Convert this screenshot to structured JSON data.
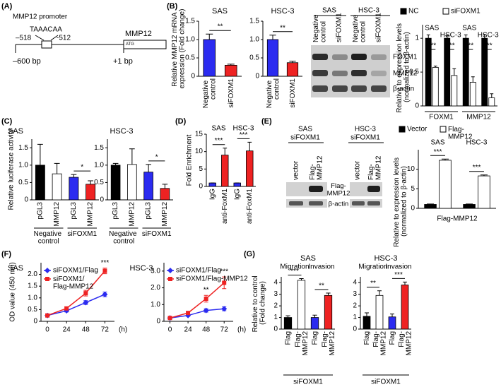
{
  "panel_labels": [
    "(A)",
    "(B)",
    "(C)",
    "(D)",
    "(E)",
    "(F)",
    "(G)"
  ],
  "promoter": {
    "title": "MMP12 promoter",
    "motif": "TAAACAA",
    "left_pos": "–518",
    "right_pos": "-512",
    "gene": "MMP12",
    "start_codon": "ATG",
    "start": "–600 bp",
    "tss": "+1 bp"
  },
  "blot_b": {
    "groups": [
      "SAS",
      "HSC-3"
    ],
    "lanes": [
      "Negative control",
      "siFOXM1",
      "Negative control",
      "siFOXM1"
    ],
    "rows": [
      "FOXM1",
      "MMP12",
      "β-actin"
    ]
  },
  "blot_e": {
    "panels": [
      {
        "title": [
          "SAS",
          "siFOXM1"
        ],
        "lanes": [
          "vector",
          "Flag-MMP12"
        ]
      },
      {
        "title": [
          "HSC-3",
          "siFOXM1"
        ],
        "lanes": [
          "vector",
          "Flag-MMP12"
        ]
      }
    ],
    "rows": [
      "Flag-MMP12",
      "β-actin"
    ]
  },
  "chart_data": [
    {
      "type": "bar",
      "title": "SAS",
      "y_label": "Relative MMP12 mRNA expression (Fold change)",
      "categories": [
        "Negative control",
        "siFOXM1"
      ],
      "values": [
        1.0,
        0.3
      ],
      "errors": [
        0.15,
        0.03
      ],
      "colors": [
        "#2b2bf0",
        "#ee2222"
      ],
      "ylim": [
        0,
        1.5
      ],
      "yticks": [
        0,
        0.5,
        {
          "value": 1,
          "label": "1.0"
        },
        1.5
      ],
      "annotations": [
        "**"
      ]
    },
    {
      "type": "bar",
      "title": "HSC-3",
      "categories": [
        "Negative control",
        "siFOXM1"
      ],
      "values": [
        1.0,
        0.37
      ],
      "errors": [
        0.12,
        0.04
      ],
      "colors": [
        "#2b2bf0",
        "#ee2222"
      ],
      "ylim": [
        0,
        1.5
      ],
      "yticks": [
        0,
        0.5,
        {
          "value": 1,
          "label": "1.0"
        },
        1.5
      ],
      "annotations": [
        "**"
      ]
    },
    {
      "type": "bar",
      "y_label": "Relative to expression levels (normalized to β-actin)",
      "categories": [
        "SAS",
        "HSC-3",
        "SAS",
        "HSC-3"
      ],
      "groups": [
        "FOXM1",
        "MMP12"
      ],
      "series": [
        {
          "name": "NC",
          "color": "#000000",
          "values": [
            1,
            1,
            1,
            1
          ],
          "errors": [
            0.05,
            0.04,
            0.05,
            0.05
          ]
        },
        {
          "name": "siFOXM1",
          "color": "#ffffff",
          "values": [
            0.57,
            0.45,
            0.35,
            0.12
          ],
          "errors": [
            0.02,
            0.1,
            0.08,
            0.06
          ]
        }
      ],
      "ylim": [
        0,
        1.2
      ],
      "yticks": [
        0,
        0.5,
        1
      ],
      "annotations": [
        "***",
        "***",
        "***",
        "***"
      ]
    },
    {
      "type": "bar",
      "title": "SAS",
      "y_label": "Relative luciferase activity",
      "categories": [
        "pGL3",
        "MMP12",
        "pGL3",
        "MMP12"
      ],
      "groups": [
        "Negative control",
        "siFOXM1"
      ],
      "values": [
        1.0,
        0.75,
        0.65,
        0.45
      ],
      "errors": [
        0.6,
        0.3,
        0.08,
        0.1
      ],
      "colors": [
        "#000000",
        "#ffffff",
        "#2b2bf0",
        "#ee2222"
      ],
      "ylim": [
        0,
        1.75
      ],
      "yticks": [
        0,
        0.5,
        {
          "value": 1,
          "label": "1.0"
        },
        1.5
      ],
      "annotations": [
        "*"
      ]
    },
    {
      "type": "bar",
      "title": "HSC-3",
      "categories": [
        "pGL3",
        "MMP12",
        "pGL3",
        "MMP12"
      ],
      "groups": [
        "Negative control",
        "siFOXM1"
      ],
      "values": [
        1.0,
        1.02,
        0.8,
        0.33
      ],
      "errors": [
        0.05,
        0.45,
        0.22,
        0.12
      ],
      "colors": [
        "#000000",
        "#ffffff",
        "#2b2bf0",
        "#ee2222"
      ],
      "ylim": [
        0,
        1.75
      ],
      "yticks": [
        0,
        0.5,
        {
          "value": 1,
          "label": "1.0"
        },
        1.5
      ],
      "annotations": [
        "*"
      ]
    },
    {
      "type": "bar",
      "y_label": "Fold Enrichment",
      "top_groups": [
        "SAS",
        "HSC-3"
      ],
      "categories": [
        "IgG",
        "anti-FoxM1",
        "IgG",
        "anti-FoxM1"
      ],
      "values": [
        1,
        9,
        1,
        10.2
      ],
      "errors": [
        0,
        2,
        0,
        2.5
      ],
      "colors": [
        "#2b2bf0",
        "#ee2222",
        "#2b2bf0",
        "#ee2222"
      ],
      "ylim": [
        0,
        15
      ],
      "yticks": [
        0,
        5,
        10,
        15
      ],
      "annotations": [
        "***",
        "***"
      ]
    },
    {
      "type": "bar",
      "x_label": "Flag-MMP12",
      "y_label": "Relative to expression levels (normalized to β-actin)",
      "categories": [
        "SAS",
        "HSC-3"
      ],
      "series": [
        {
          "name": "Vector",
          "color": "#000000",
          "values": [
            1,
            1
          ],
          "errors": [
            0.1,
            0.1
          ]
        },
        {
          "name": "Flag-MMP12",
          "color": "#ffffff",
          "values": [
            12.3,
            8.3
          ],
          "errors": [
            0.3,
            0.25
          ]
        }
      ],
      "ylim": [
        0,
        15
      ],
      "yticks": [
        0,
        5,
        10
      ],
      "annotations": [
        "***",
        "***"
      ]
    },
    {
      "type": "line",
      "title": "SAS",
      "y_label": "OD value (450 nm)",
      "x_label": "(h)",
      "x": [
        0,
        24,
        48,
        72
      ],
      "xlim": [
        -8,
        84
      ],
      "xticks": [
        0,
        24,
        48,
        72
      ],
      "series": [
        {
          "name": "siFOXM1/Flag",
          "color": "#2b2bf0",
          "values": [
            0.25,
            0.45,
            0.8,
            1.15
          ],
          "errors": [
            0.02,
            0.05,
            0.08,
            0.1
          ]
        },
        {
          "name": "siFOXM1/ Flag-MMP12",
          "color": "#ee2222",
          "values": [
            0.25,
            0.55,
            1.2,
            2.15
          ],
          "errors": [
            0.03,
            0.06,
            0.12,
            0.12
          ]
        }
      ],
      "ylim": [
        0,
        2.5
      ],
      "yticks": [
        0,
        0.5,
        {
          "value": 1,
          "label": "1.0"
        },
        1.5,
        {
          "value": 2,
          "label": "2.0"
        }
      ],
      "annotations": [
        "***"
      ]
    },
    {
      "type": "line",
      "title": "HSC-3",
      "x_label": "(h)",
      "x": [
        0,
        24,
        48,
        72
      ],
      "xlim": [
        -8,
        84
      ],
      "xticks": [
        0,
        24,
        48,
        72
      ],
      "series": [
        {
          "name": "siFOXM1/Flag",
          "color": "#2b2bf0",
          "values": [
            0.2,
            0.35,
            0.65,
            0.75
          ],
          "errors": [
            0.03,
            0.05,
            0.1,
            0.12
          ]
        },
        {
          "name": "siFOXM1/Flag-MMP12",
          "color": "#ee2222",
          "values": [
            0.2,
            0.5,
            1.35,
            2.3
          ],
          "errors": [
            0.03,
            0.07,
            0.2,
            0.35
          ]
        }
      ],
      "ylim": [
        0,
        3.5
      ],
      "yticks": [
        0,
        {
          "value": 1,
          "label": "1.0"
        },
        {
          "value": 2,
          "label": "2.0"
        },
        {
          "value": 3,
          "label": "3.0"
        }
      ],
      "annotations": [
        "**",
        "***"
      ]
    },
    {
      "type": "bar",
      "title": "SAS",
      "y_label": "Relative to control (Fold change)",
      "x_label": "siFOXM1",
      "top_groups": [
        "Migration",
        "Invasion"
      ],
      "categories": [
        "Flag",
        "Flag-MMP12",
        "Flag",
        "Flag-MMP12"
      ],
      "values": [
        1,
        4.2,
        1,
        2.9
      ],
      "errors": [
        0.15,
        0.15,
        0.2,
        0.2
      ],
      "colors": [
        "#000000",
        "#ffffff",
        "#2b2bf0",
        "#ee2222"
      ],
      "ylim": [
        0,
        4.5
      ],
      "yticks": [
        0,
        1,
        2,
        3,
        4
      ],
      "annotations": [
        "***",
        "**"
      ]
    },
    {
      "type": "bar",
      "title": "HSC-3",
      "x_label": "siFOXM1",
      "top_groups": [
        "Migration",
        "Invasion"
      ],
      "categories": [
        "Flag",
        "Flag-MMP12",
        "Flag",
        "Flag-MMP12"
      ],
      "values": [
        1.1,
        2.9,
        1.05,
        3.8
      ],
      "errors": [
        0.3,
        0.4,
        0.25,
        0.25
      ],
      "colors": [
        "#000000",
        "#ffffff",
        "#2b2bf0",
        "#ee2222"
      ],
      "ylim": [
        0,
        4.5
      ],
      "yticks": [
        0,
        1,
        2,
        3,
        4
      ],
      "annotations": [
        "**",
        "***"
      ]
    }
  ]
}
